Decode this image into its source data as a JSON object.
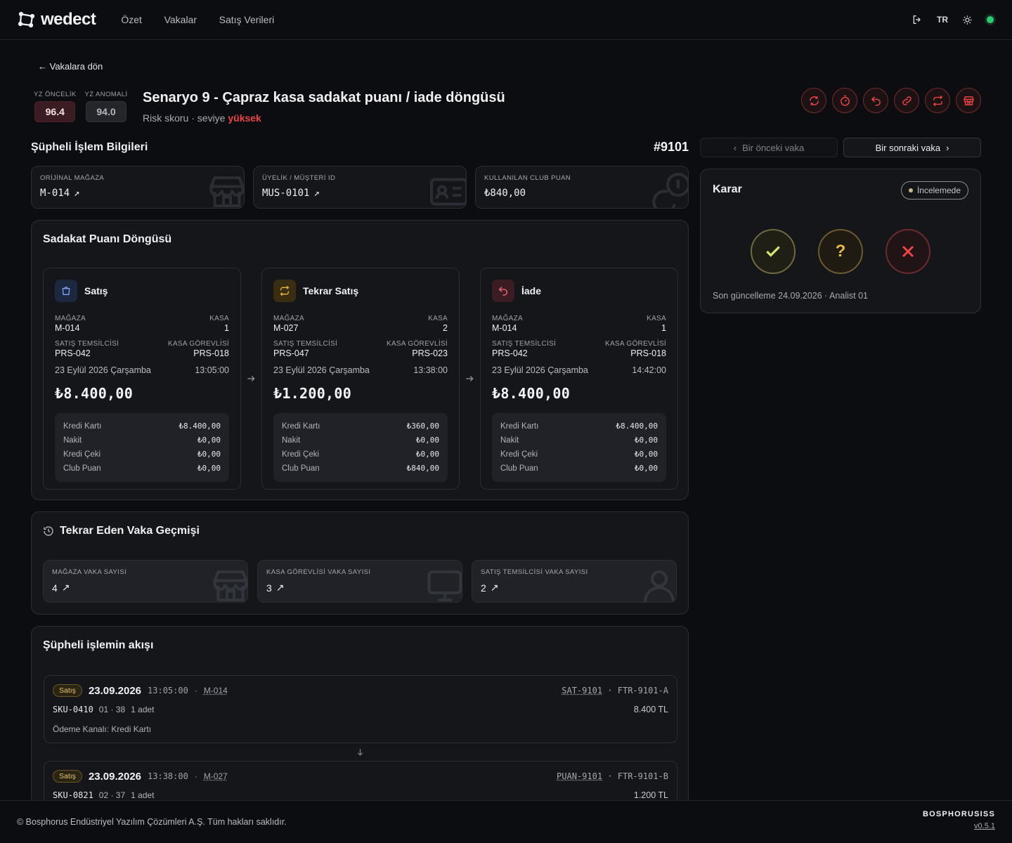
{
  "app": {
    "logo_text": "wedect",
    "logo_icon": "wedect-logo-icon"
  },
  "nav": {
    "items": [
      "Özet",
      "Vakalar",
      "Satış Verileri"
    ]
  },
  "topbar": {
    "language": "TR",
    "logout_icon": "logout-icon",
    "theme_icon": "sun-icon",
    "status_color": "#2ecc71"
  },
  "back_link": "Vakalara dön",
  "scores": {
    "priority": {
      "label": "YZ ÖNCELİK",
      "value": "96.4"
    },
    "anomaly": {
      "label": "YZ ANOMALİ",
      "value": "94.0"
    }
  },
  "header": {
    "title": "Senaryo 9 - Çapraz kasa sadakat puanı / iade döngüsü",
    "risk_prefix": "Risk skoru · seviye",
    "risk_level": "yüksek",
    "risk_color": "#ef4444",
    "action_icons": [
      "refresh-icon",
      "timer-icon",
      "undo-icon",
      "link-icon",
      "repeat-icon",
      "store-icon"
    ]
  },
  "section": {
    "title": "Şüpheli İşlem Bilgileri",
    "case_number": "#9101"
  },
  "pager": {
    "prev": "Bir önceki vaka",
    "next": "Bir sonraki vaka"
  },
  "info_cards": [
    {
      "label": "ORİJİNAL MAĞAZA",
      "value": "M-014",
      "icon": "store-icon"
    },
    {
      "label": "ÜYELİK / MÜŞTERİ ID",
      "value": "MUS-0101",
      "icon": "id-card-icon"
    },
    {
      "label": "KULLANILAN CLUB PUAN",
      "value": "₺840,00",
      "icon": "coins-icon"
    }
  ],
  "loyalty_cycle": {
    "title": "Sadakat Puanı Döngüsü",
    "cards": [
      {
        "name": "Satış",
        "icon": "shopping-bag-icon",
        "store_label": "MAĞAZA",
        "store": "M-014",
        "register_label": "KASA",
        "register": "1",
        "sales_rep_label": "SATIŞ TEMSİLCİSİ",
        "sales_rep": "PRS-042",
        "cashier_label": "KASA GÖREVLİSİ",
        "cashier": "PRS-018",
        "date": "23 Eylül 2026 Çarşamba",
        "time": "13:05:00",
        "amount": "₺8.400,00",
        "payments": [
          {
            "method": "Kredi Kartı",
            "amount": "₺8.400,00"
          },
          {
            "method": "Nakit",
            "amount": "₺0,00"
          },
          {
            "method": "Kredi Çeki",
            "amount": "₺0,00"
          },
          {
            "method": "Club Puan",
            "amount": "₺0,00"
          }
        ]
      },
      {
        "name": "Tekrar Satış",
        "icon": "repeat-icon",
        "store_label": "MAĞAZA",
        "store": "M-027",
        "register_label": "KASA",
        "register": "2",
        "sales_rep_label": "SATIŞ TEMSİLCİSİ",
        "sales_rep": "PRS-047",
        "cashier_label": "KASA GÖREVLİSİ",
        "cashier": "PRS-023",
        "date": "23 Eylül 2026 Çarşamba",
        "time": "13:38:00",
        "amount": "₺1.200,00",
        "payments": [
          {
            "method": "Kredi Kartı",
            "amount": "₺360,00"
          },
          {
            "method": "Nakit",
            "amount": "₺0,00"
          },
          {
            "method": "Kredi Çeki",
            "amount": "₺0,00"
          },
          {
            "method": "Club Puan",
            "amount": "₺840,00"
          }
        ]
      },
      {
        "name": "İade",
        "icon": "undo-icon",
        "store_label": "MAĞAZA",
        "store": "M-014",
        "register_label": "KASA",
        "register": "1",
        "sales_rep_label": "SATIŞ TEMSİLCİSİ",
        "sales_rep": "PRS-042",
        "cashier_label": "KASA GÖREVLİSİ",
        "cashier": "PRS-018",
        "date": "23 Eylül 2026 Çarşamba",
        "time": "14:42:00",
        "amount": "₺8.400,00",
        "payments": [
          {
            "method": "Kredi Kartı",
            "amount": "₺8.400,00"
          },
          {
            "method": "Nakit",
            "amount": "₺0,00"
          },
          {
            "method": "Kredi Çeki",
            "amount": "₺0,00"
          },
          {
            "method": "Club Puan",
            "amount": "₺0,00"
          }
        ]
      }
    ]
  },
  "history": {
    "title": "Tekrar Eden Vaka Geçmişi",
    "icon": "history-icon",
    "stats": [
      {
        "label": "MAĞAZA VAKA SAYISI",
        "value": "4",
        "icon": "store-icon"
      },
      {
        "label": "KASA GÖREVLİSİ VAKA SAYISI",
        "value": "3",
        "icon": "monitor-icon"
      },
      {
        "label": "SATIŞ TEMSİLCİSİ VAKA SAYISI",
        "value": "2",
        "icon": "user-icon"
      }
    ]
  },
  "flow": {
    "title": "Şüpheli işlemin akışı",
    "transactions": [
      {
        "badge": "Satış",
        "date": "23.09.2026",
        "time": "13:05:00",
        "store": "M-014",
        "ref": "SAT-9101",
        "invoice": "FTR-9101-A",
        "sku": "SKU-0410",
        "variant": "01 · 38",
        "qty": "1 adet",
        "amount": "8.400 TL",
        "payment": "Ödeme Kanalı: Kredi Kartı"
      },
      {
        "badge": "Satış",
        "date": "23.09.2026",
        "time": "13:38:00",
        "store": "M-027",
        "ref": "PUAN-9101",
        "invoice": "FTR-9101-B",
        "sku": "SKU-0821",
        "variant": "02 · 37",
        "qty": "1 adet",
        "amount": "1.200 TL"
      }
    ]
  },
  "decision": {
    "title": "Karar",
    "status": "İncelemede",
    "question_mark": "?",
    "last_update": "Son güncelleme 24.09.2026 · Analist 01"
  },
  "footer": {
    "copyright": "© Bosphorus Endüstriyel Yazılım Çözümleri A.Ş. Tüm hakları saklıdır.",
    "brand": "BOSPHORUSISS",
    "version": "v0.5.1"
  }
}
